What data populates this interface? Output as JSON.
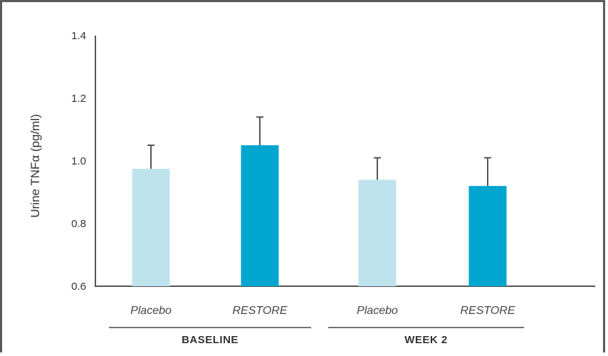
{
  "chart_data": {
    "type": "bar",
    "title": "",
    "ylabel": "Urine TNFα (pg/ml)",
    "xlabel": "",
    "ylim": [
      0.6,
      1.4
    ],
    "yticks": [
      "0.6",
      "0.8",
      "1.0",
      "1.2",
      "1.4"
    ],
    "ytick_values": [
      0.6,
      0.8,
      1.0,
      1.2,
      1.4
    ],
    "grid": false,
    "groups": [
      {
        "label": "BASELINE",
        "bars": [
          {
            "category": "Placebo",
            "value": 0.975,
            "error": 0.075,
            "color": "#bfe3ec"
          },
          {
            "category": "RESTORE",
            "value": 1.05,
            "error": 0.09,
            "color": "#00a6cf"
          }
        ]
      },
      {
        "label": "WEEK 2",
        "bars": [
          {
            "category": "Placebo",
            "value": 0.94,
            "error": 0.07,
            "color": "#bfe3ec"
          },
          {
            "category": "RESTORE",
            "value": 0.92,
            "error": 0.09,
            "color": "#00a6cf"
          }
        ]
      }
    ],
    "colors": {
      "axis": "#555555",
      "error_bar": "#555555"
    }
  }
}
